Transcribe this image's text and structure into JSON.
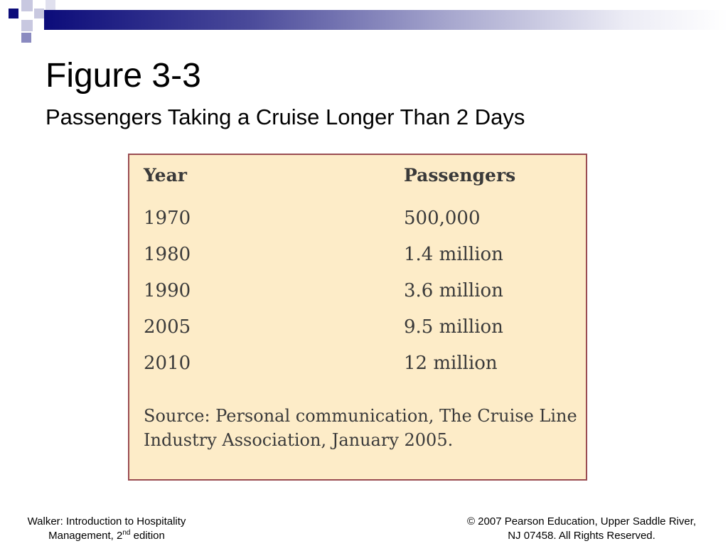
{
  "slide": {
    "title": "Figure 3-3",
    "subtitle": "Passengers Taking a Cruise Longer Than 2 Days",
    "accent_color": "#0c0c7a"
  },
  "table": {
    "headers": [
      "Year",
      "Passengers"
    ],
    "rows": [
      [
        "1970",
        "500,000"
      ],
      [
        "1980",
        "1.4 million"
      ],
      [
        "1990",
        "3.6 million"
      ],
      [
        "2005",
        "9.5 million"
      ],
      [
        "2010",
        "12 million"
      ]
    ],
    "source": "Source: Personal communication, The Cruise Line Industry Association, January 2005.",
    "background_color": "#fdecc8",
    "border_color": "#9a4c52"
  },
  "footer": {
    "left_line1": "Walker: Introduction to Hospitality",
    "left_line2_prefix": "Management, 2",
    "left_line2_sup": "nd",
    "left_line2_suffix": " edition",
    "right_line1": "© 2007 Pearson Education, Upper Saddle River,",
    "right_line2": "NJ 07458. All Rights Reserved."
  }
}
